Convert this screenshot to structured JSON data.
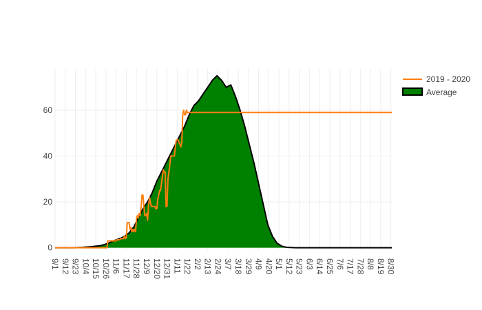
{
  "chart_data": {
    "type": "area",
    "x_tick_labels": [
      "9/1",
      "9/12",
      "9/23",
      "10/4",
      "10/15",
      "10/26",
      "11/6",
      "11/17",
      "11/28",
      "12/9",
      "12/20",
      "12/31",
      "1/11",
      "1/22",
      "2/2",
      "2/13",
      "2/24",
      "3/7",
      "3/18",
      "3/29",
      "4/9",
      "4/20",
      "5/1",
      "5/12",
      "5/23",
      "6/3",
      "6/14",
      "6/25",
      "7/6",
      "7/17",
      "7/28",
      "8/8",
      "8/19",
      "8/30"
    ],
    "y_ticks": [
      0,
      20,
      40,
      60
    ],
    "xlim_day": [
      0,
      364
    ],
    "ylim": [
      -1,
      78
    ],
    "grid": true,
    "legend_placement": "top-right",
    "series": [
      {
        "name": "2019 - 2020",
        "type": "line",
        "color": "#ff7f0e",
        "points": [
          [
            0,
            0
          ],
          [
            56,
            0
          ],
          [
            57,
            3
          ],
          [
            66,
            3
          ],
          [
            67,
            3.5
          ],
          [
            70,
            3.5
          ],
          [
            71,
            4
          ],
          [
            74,
            4
          ],
          [
            75,
            5
          ],
          [
            76,
            4
          ],
          [
            77,
            4.5
          ],
          [
            78,
            11
          ],
          [
            80,
            11
          ],
          [
            81,
            8
          ],
          [
            82,
            9
          ],
          [
            83,
            7
          ],
          [
            84,
            8
          ],
          [
            85,
            7
          ],
          [
            86,
            8
          ],
          [
            87,
            7
          ],
          [
            88,
            13
          ],
          [
            89,
            14
          ],
          [
            90,
            13
          ],
          [
            91,
            15
          ],
          [
            92,
            14
          ],
          [
            93,
            18
          ],
          [
            94,
            23
          ],
          [
            95,
            23
          ],
          [
            96,
            18
          ],
          [
            97,
            14
          ],
          [
            98,
            14
          ],
          [
            99,
            15
          ],
          [
            100,
            12
          ],
          [
            101,
            18
          ],
          [
            102,
            22
          ],
          [
            103,
            20
          ],
          [
            104,
            18
          ],
          [
            105,
            18
          ],
          [
            106,
            18
          ],
          [
            107,
            18
          ],
          [
            108,
            18
          ],
          [
            109,
            17
          ],
          [
            110,
            17
          ],
          [
            111,
            21
          ],
          [
            112,
            23
          ],
          [
            113,
            25
          ],
          [
            114,
            25
          ],
          [
            115,
            28
          ],
          [
            116,
            31
          ],
          [
            117,
            34
          ],
          [
            118,
            33
          ],
          [
            119,
            33
          ],
          [
            120,
            18
          ],
          [
            121,
            18
          ],
          [
            122,
            30
          ],
          [
            123,
            33
          ],
          [
            124,
            36
          ],
          [
            125,
            40
          ],
          [
            128,
            40
          ],
          [
            129,
            40
          ],
          [
            130,
            44
          ],
          [
            131,
            47
          ],
          [
            132,
            47
          ],
          [
            133,
            47
          ],
          [
            134,
            46
          ],
          [
            135,
            45
          ],
          [
            136,
            44
          ],
          [
            137,
            46
          ],
          [
            138,
            58
          ],
          [
            139,
            60
          ],
          [
            140,
            58
          ],
          [
            141,
            58
          ],
          [
            142,
            60
          ],
          [
            143,
            59
          ],
          [
            364,
            59
          ]
        ]
      },
      {
        "name": "Average",
        "type": "area",
        "color": "#008000",
        "line_color": "#000000",
        "points": [
          [
            0,
            0
          ],
          [
            20,
            0
          ],
          [
            30,
            0.2
          ],
          [
            40,
            0.5
          ],
          [
            50,
            1
          ],
          [
            58,
            2
          ],
          [
            63,
            3
          ],
          [
            70,
            4
          ],
          [
            75,
            5
          ],
          [
            80,
            6.5
          ],
          [
            85,
            9
          ],
          [
            90,
            13
          ],
          [
            95,
            17
          ],
          [
            100,
            20
          ],
          [
            105,
            24
          ],
          [
            110,
            29
          ],
          [
            115,
            33
          ],
          [
            120,
            37
          ],
          [
            125,
            41
          ],
          [
            130,
            45
          ],
          [
            135,
            49
          ],
          [
            140,
            53
          ],
          [
            145,
            58
          ],
          [
            150,
            62
          ],
          [
            155,
            64
          ],
          [
            160,
            67
          ],
          [
            165,
            70
          ],
          [
            170,
            73
          ],
          [
            175,
            75
          ],
          [
            180,
            73
          ],
          [
            185,
            70
          ],
          [
            190,
            71
          ],
          [
            195,
            66
          ],
          [
            200,
            60
          ],
          [
            205,
            53
          ],
          [
            210,
            45
          ],
          [
            215,
            37
          ],
          [
            220,
            28
          ],
          [
            225,
            19
          ],
          [
            230,
            10
          ],
          [
            235,
            5
          ],
          [
            240,
            2
          ],
          [
            245,
            0.7
          ],
          [
            250,
            0.2
          ],
          [
            260,
            0
          ],
          [
            300,
            0
          ],
          [
            364,
            0
          ]
        ]
      }
    ]
  }
}
